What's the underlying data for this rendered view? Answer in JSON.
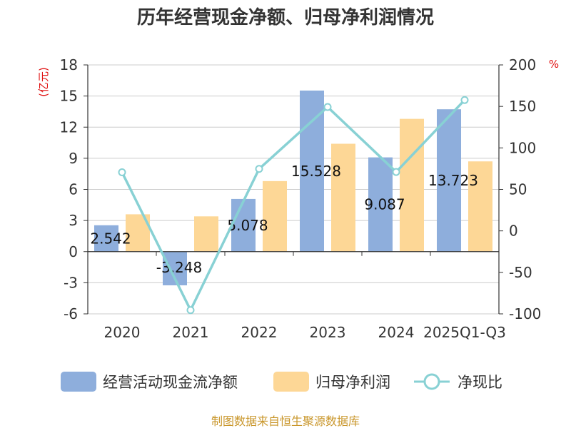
{
  "chart_data": {
    "type": "bar",
    "title": "历年经营现金净额、归母净利润情况",
    "categories": [
      "2020",
      "2021",
      "2022",
      "2023",
      "2024",
      "2025Q1-Q3"
    ],
    "left_axis": {
      "unit": "(亿元)",
      "ylim": [
        -6,
        18
      ],
      "ticks": [
        "-6",
        "-3",
        "0",
        "3",
        "6",
        "9",
        "12",
        "15",
        "18"
      ]
    },
    "right_axis": {
      "unit": "%",
      "ylim": [
        -100,
        200
      ],
      "ticks": [
        "-100",
        "-50",
        "0",
        "50",
        "100",
        "150",
        "200"
      ]
    },
    "series": [
      {
        "name": "经营活动现金流净额",
        "type": "bar",
        "axis": "left",
        "color": "#8eaedc",
        "values": [
          2.542,
          -3.248,
          5.078,
          15.528,
          9.087,
          13.723
        ],
        "data_labels": [
          "2.542",
          "-3.248",
          "5.078",
          "15.528",
          "9.087",
          "13.723"
        ]
      },
      {
        "name": "归母净利润",
        "type": "bar",
        "axis": "left",
        "color": "#fdd796",
        "values": [
          3.6,
          3.4,
          6.8,
          10.4,
          12.8,
          8.7
        ]
      },
      {
        "name": "净现比",
        "type": "line",
        "axis": "right",
        "color": "#88d1d4",
        "values": [
          70.6,
          -95.5,
          74.7,
          149.3,
          71.0,
          157.7
        ]
      }
    ],
    "grid": true,
    "legend_position": "bottom"
  },
  "footer": {
    "source": "制图数据来自恒生聚源数据库"
  }
}
